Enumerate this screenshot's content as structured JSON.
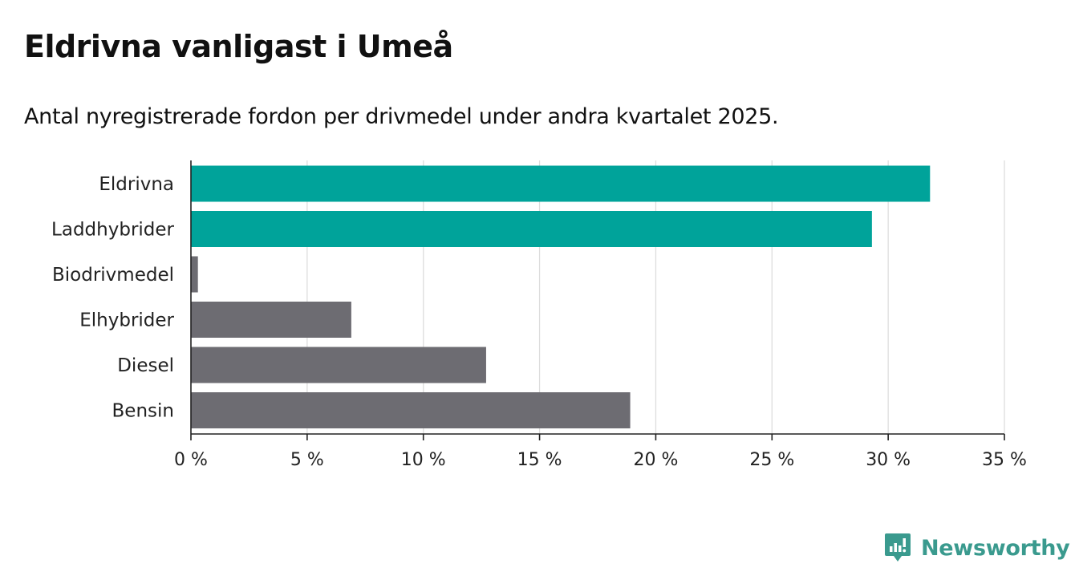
{
  "title": "Eldrivna vanligast i Umeå",
  "subtitle": "Antal nyregistrerade fordon per drivmedel under andra kvartalet 2025.",
  "brand": "Newsworthy",
  "colors": {
    "highlight": "#00a39a",
    "default": "#6d6c72",
    "grid": "#dddddd",
    "axis": "#222222",
    "brand": "#3a9a8e"
  },
  "chart_data": {
    "type": "bar",
    "orientation": "horizontal",
    "categories": [
      "Eldrivna",
      "Laddhybrider",
      "Biodrivmedel",
      "Elhybrider",
      "Diesel",
      "Bensin"
    ],
    "values": [
      31.8,
      29.3,
      0.3,
      6.9,
      12.7,
      18.9
    ],
    "highlighted": [
      true,
      true,
      false,
      false,
      false,
      false
    ],
    "xlim": [
      0,
      35
    ],
    "xticks": [
      0,
      5,
      10,
      15,
      20,
      25,
      30,
      35
    ],
    "xtick_labels": [
      "0 %",
      "5 %",
      "10 %",
      "15 %",
      "20 %",
      "25 %",
      "30 %",
      "35 %"
    ],
    "grid": true
  }
}
